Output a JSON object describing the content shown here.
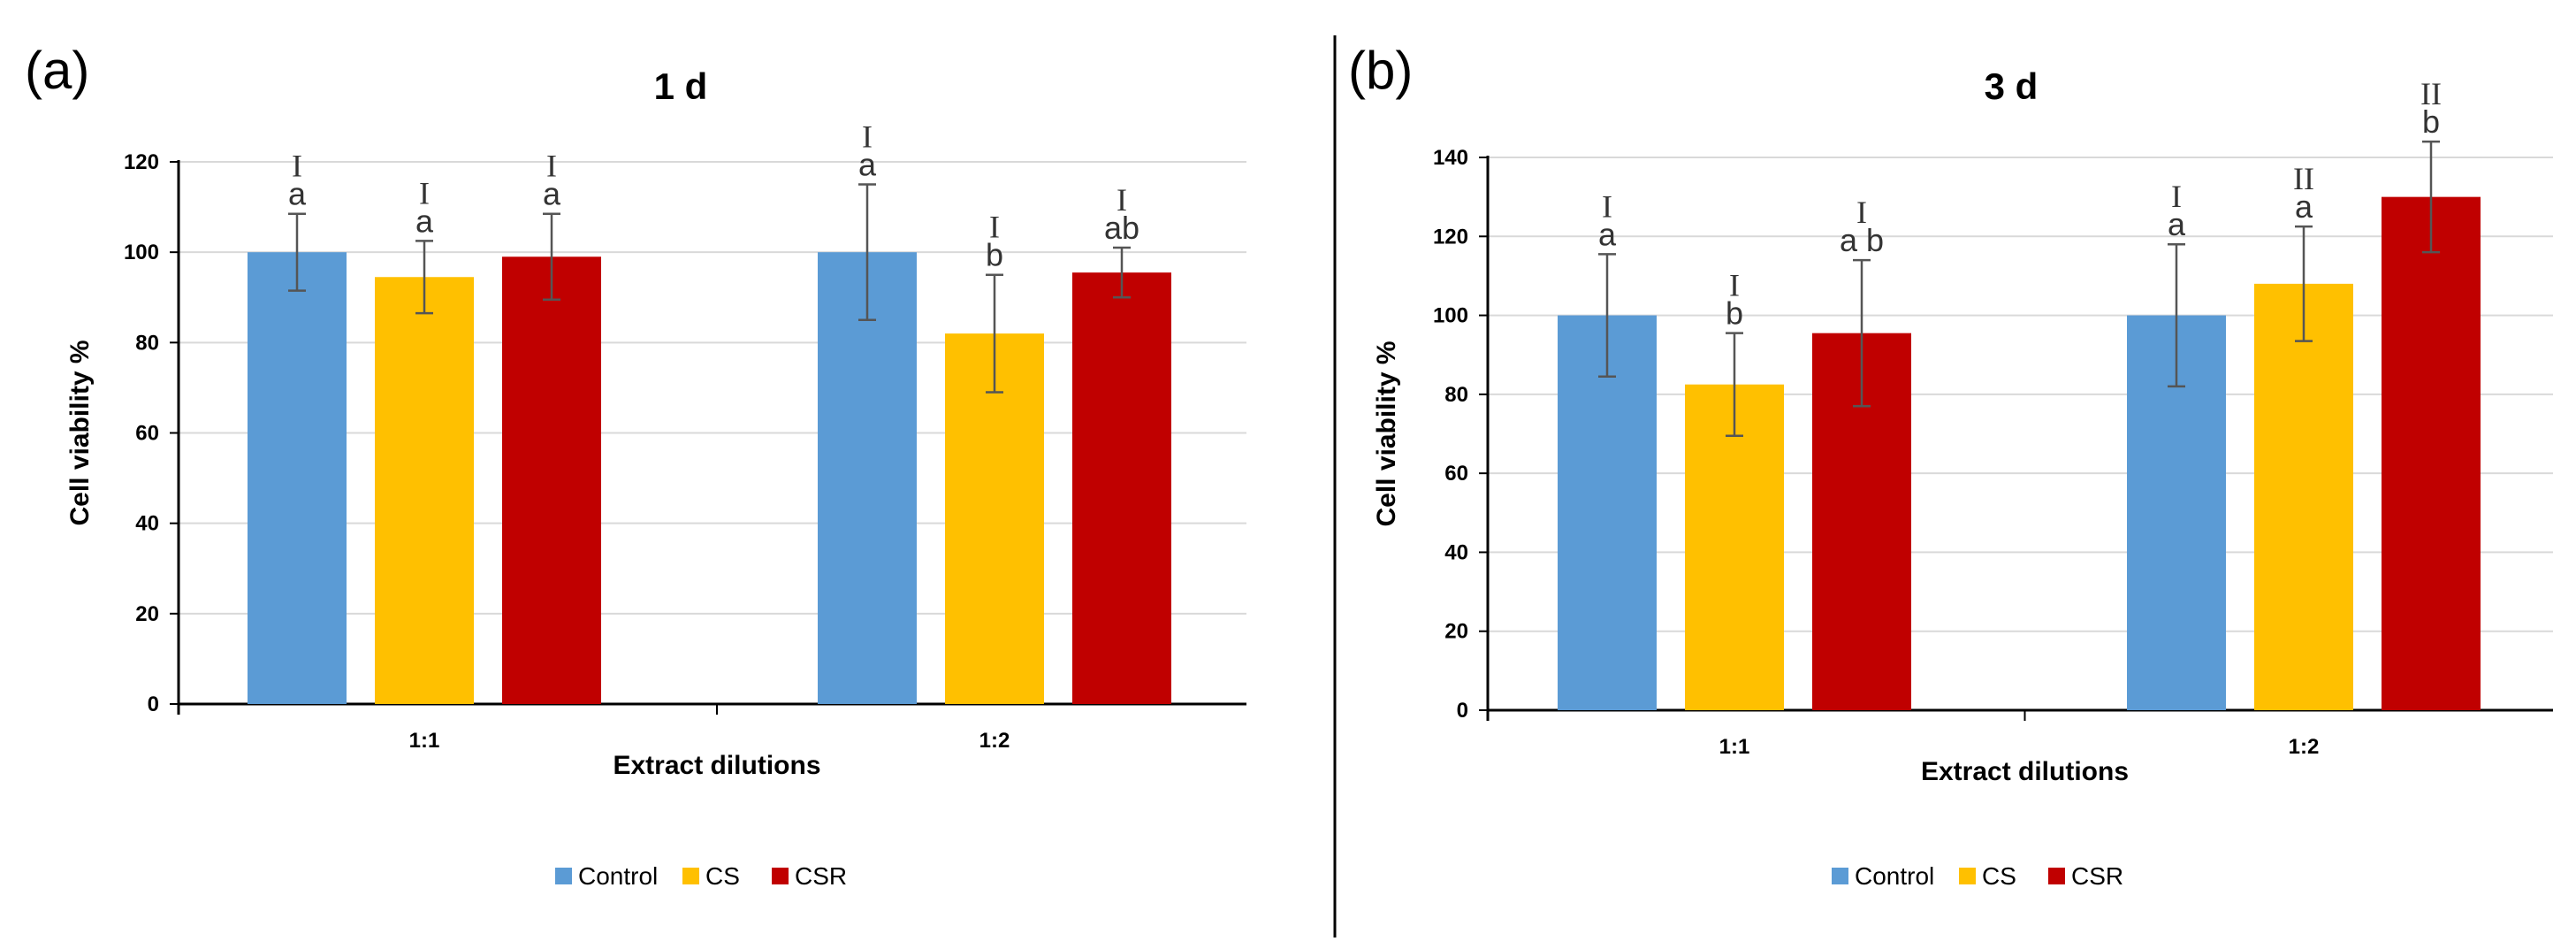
{
  "chart_data": [
    {
      "type": "bar",
      "panel_label": "(a)",
      "title": "1 d",
      "xlabel": "Extract dilutions",
      "ylabel": "Cell viability %",
      "ylim": [
        0,
        120
      ],
      "yticks": [
        0,
        20,
        40,
        60,
        80,
        100,
        120
      ],
      "categories": [
        "1:1",
        "1:2"
      ],
      "grid": true,
      "legend_position": "bottom",
      "series": [
        {
          "name": "Control",
          "color": "#5b9bd5",
          "values": [
            100,
            100
          ],
          "errors": [
            8.5,
            15
          ],
          "sig_roman": [
            "I",
            "I"
          ],
          "sig_letter": [
            "a",
            "a"
          ]
        },
        {
          "name": "CS",
          "color": "#ffc000",
          "values": [
            94.5,
            82
          ],
          "errors": [
            8,
            13
          ],
          "sig_roman": [
            "I",
            "I"
          ],
          "sig_letter": [
            "a",
            "b"
          ]
        },
        {
          "name": "CSR",
          "color": "#c00000",
          "values": [
            99,
            95.5
          ],
          "errors": [
            9.5,
            5.5
          ],
          "sig_roman": [
            "I",
            "I"
          ],
          "sig_letter": [
            "a",
            "ab"
          ]
        }
      ]
    },
    {
      "type": "bar",
      "panel_label": "(b)",
      "title": "3 d",
      "xlabel": "Extract dilutions",
      "ylabel": "Cell viability %",
      "ylim": [
        0,
        140
      ],
      "yticks": [
        0,
        20,
        40,
        60,
        80,
        100,
        120,
        140
      ],
      "categories": [
        "1:1",
        "1:2"
      ],
      "grid": true,
      "legend_position": "bottom",
      "series": [
        {
          "name": "Control",
          "color": "#5b9bd5",
          "values": [
            100,
            100
          ],
          "errors": [
            15.5,
            18
          ],
          "sig_roman": [
            "I",
            "I"
          ],
          "sig_letter": [
            "a",
            "a"
          ]
        },
        {
          "name": "CS",
          "color": "#ffc000",
          "values": [
            82.5,
            108
          ],
          "errors": [
            13,
            14.5
          ],
          "sig_roman": [
            "I",
            "II"
          ],
          "sig_letter": [
            "b",
            "a"
          ]
        },
        {
          "name": "CSR",
          "color": "#c00000",
          "values": [
            95.5,
            130
          ],
          "errors": [
            18.5,
            14
          ],
          "sig_roman": [
            "I",
            "II"
          ],
          "sig_letter": [
            "a b",
            "b"
          ]
        }
      ]
    }
  ]
}
